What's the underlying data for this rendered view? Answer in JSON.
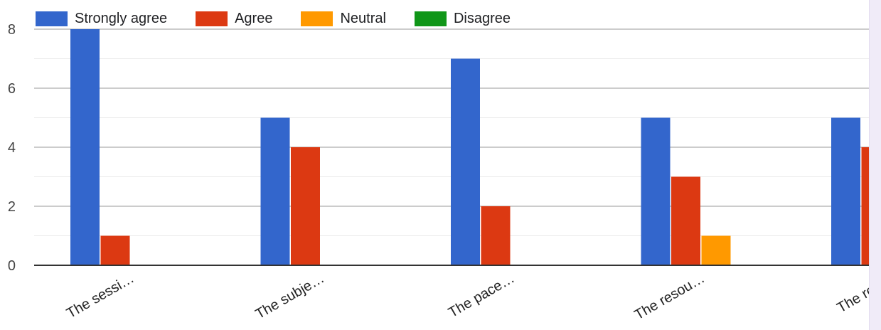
{
  "chart_data": {
    "type": "bar",
    "categories": [
      "The sessi…",
      "The subje…",
      "The pace…",
      "The resou…",
      "The resou"
    ],
    "series": [
      {
        "name": "Strongly agree",
        "color": "#3366cc",
        "values": [
          8,
          5,
          7,
          5,
          5
        ]
      },
      {
        "name": "Agree",
        "color": "#dc3912",
        "values": [
          1,
          4,
          2,
          3,
          4
        ]
      },
      {
        "name": "Neutral",
        "color": "#ff9900",
        "values": [
          0,
          0,
          0,
          1,
          0
        ]
      },
      {
        "name": "Disagree",
        "color": "#109618",
        "values": [
          0,
          0,
          0,
          0,
          0
        ]
      }
    ],
    "yticks": [
      0,
      2,
      4,
      6,
      8
    ],
    "ylim": [
      0,
      8
    ],
    "grid": true,
    "legend_position": "top-left"
  }
}
